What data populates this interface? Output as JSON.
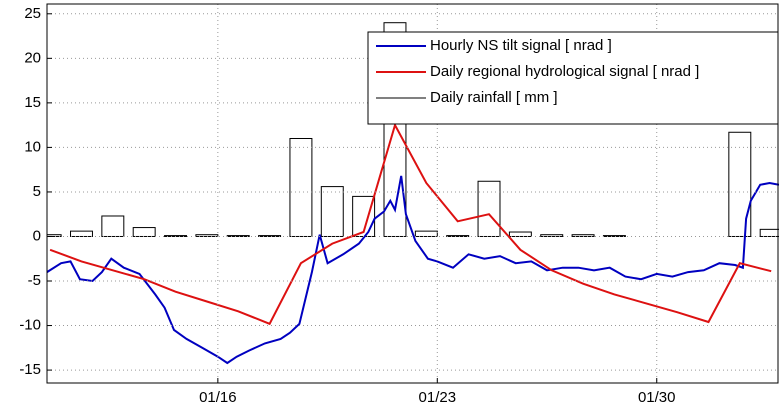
{
  "chart_data": {
    "type": "line",
    "xlim": [
      10.55,
      33.9
    ],
    "xticks": [
      {
        "value": 16,
        "label": "01/16"
      },
      {
        "value": 23,
        "label": "01/23"
      },
      {
        "value": 30,
        "label": "01/30"
      }
    ],
    "ylim": [
      -16.45,
      26.1
    ],
    "yticks": [
      -15,
      -10,
      -5,
      0,
      5,
      10,
      15,
      20,
      25
    ],
    "grid": true,
    "legend": "upper right",
    "series": [
      {
        "name": "Hourly NS tilt signal [ nrad ]",
        "type": "line",
        "color": "#0000c0",
        "x": [
          10.55,
          11,
          11.3,
          11.6,
          12,
          12.3,
          12.6,
          13,
          13.5,
          14,
          14.3,
          14.6,
          15,
          15.5,
          16,
          16.3,
          16.6,
          17,
          17.5,
          18,
          18.3,
          18.6,
          19,
          19.25,
          19.5,
          20,
          20.5,
          20.8,
          21,
          21.3,
          21.5,
          21.65,
          21.85,
          22,
          22.3,
          22.7,
          23,
          23.5,
          24,
          24.5,
          25,
          25.5,
          26,
          26.5,
          27,
          27.5,
          28,
          28.5,
          29,
          29.5,
          30,
          30.5,
          31,
          31.5,
          32,
          32.5,
          32.75,
          32.85,
          33,
          33.3,
          33.6,
          33.9
        ],
        "values": [
          -4,
          -3,
          -2.8,
          -4.8,
          -5,
          -4,
          -2.5,
          -3.5,
          -4.2,
          -6.5,
          -8,
          -10.5,
          -11.5,
          -12.5,
          -13.5,
          -14.2,
          -13.5,
          -12.8,
          -12,
          -11.5,
          -10.8,
          -9.8,
          -4,
          0.2,
          -3,
          -2,
          -0.8,
          0.5,
          2,
          2.8,
          4,
          3,
          6.8,
          2.5,
          -0.5,
          -2.5,
          -2.8,
          -3.5,
          -2,
          -2.5,
          -2.2,
          -3,
          -2.8,
          -3.8,
          -3.5,
          -3.5,
          -3.8,
          -3.5,
          -4.5,
          -4.8,
          -4.2,
          -4.5,
          -4,
          -3.8,
          -3,
          -3.2,
          -3.5,
          2,
          4,
          5.8,
          6,
          5.8
        ]
      },
      {
        "name": "Daily regional hydrological signal [ nrad ]",
        "type": "line",
        "color": "#dd1111",
        "x": [
          10.65,
          11.65,
          12.65,
          13.65,
          14.65,
          15.65,
          16.65,
          17.65,
          18.65,
          19.65,
          20.65,
          21.65,
          22.65,
          23.65,
          24.65,
          25.65,
          26.65,
          27.65,
          28.65,
          29.65,
          30.65,
          31.65,
          32.65,
          33.65
        ],
        "values": [
          -1.5,
          -2.8,
          -3.8,
          -4.8,
          -6.2,
          -7.3,
          -8.4,
          -9.8,
          -3,
          -0.8,
          0.5,
          12.5,
          6,
          1.7,
          2.5,
          -1.5,
          -3.8,
          -5.3,
          -6.5,
          -7.5,
          -8.5,
          -9.6,
          -3,
          -3.9
        ]
      },
      {
        "name": "Daily rainfall [ mm ]",
        "type": "bar",
        "color": "#000000",
        "x": [
          10.65,
          11.65,
          12.65,
          13.65,
          14.65,
          15.65,
          16.65,
          17.65,
          18.65,
          19.65,
          20.65,
          21.65,
          22.65,
          23.65,
          24.65,
          25.65,
          26.65,
          27.65,
          28.65,
          29.65,
          30.65,
          31.65,
          32.65,
          33.65
        ],
        "values": [
          0.2,
          0.6,
          2.3,
          1,
          0.1,
          0.2,
          0.1,
          0.1,
          11,
          5.6,
          4.5,
          24,
          0.6,
          0.1,
          6.2,
          0.5,
          0.2,
          0.2,
          0.1,
          0,
          0,
          0,
          11.7,
          0.8
        ]
      }
    ]
  }
}
